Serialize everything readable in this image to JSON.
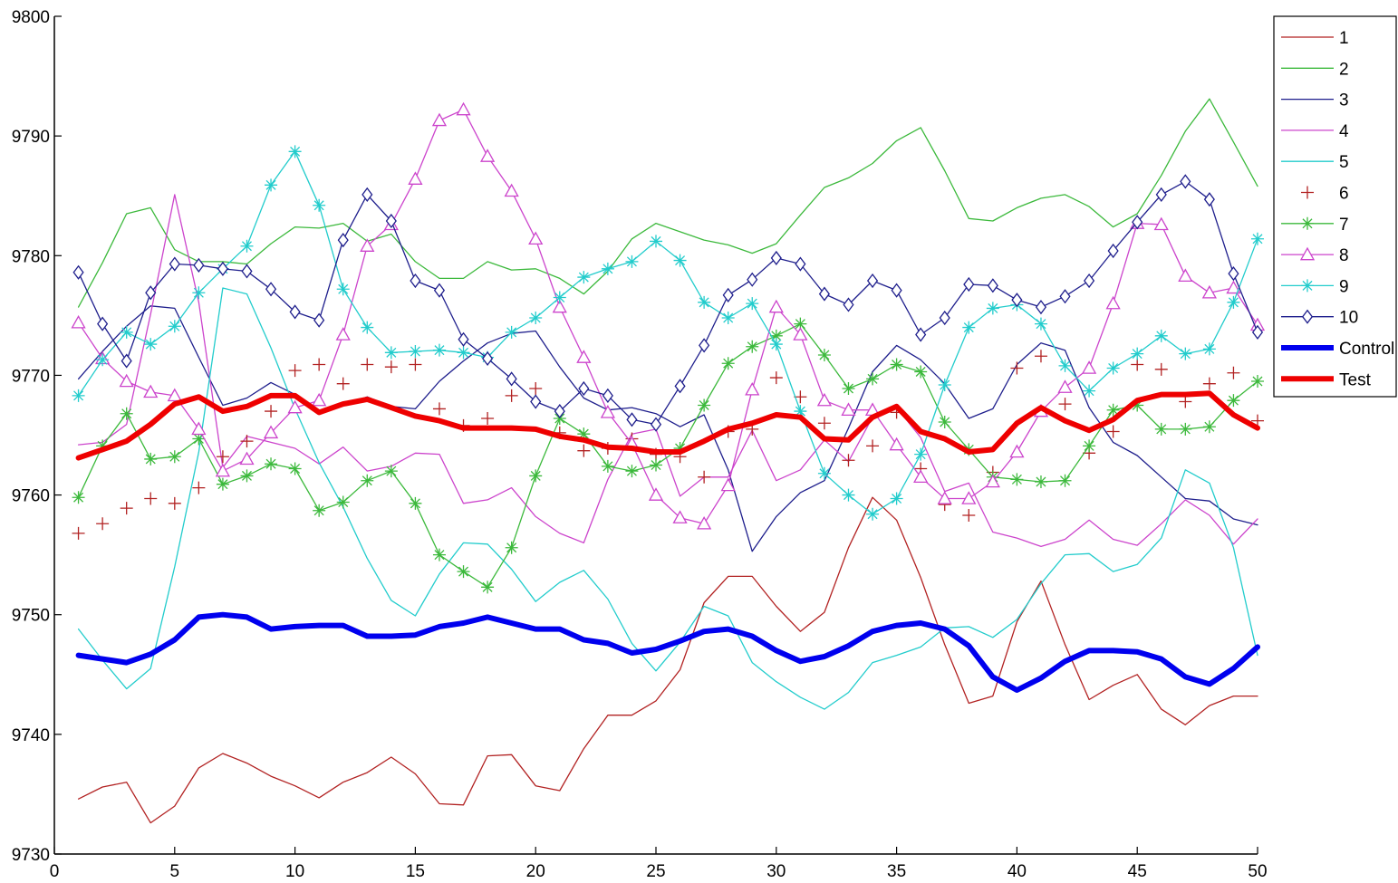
{
  "chart_data": {
    "type": "line",
    "title": "",
    "xlabel": "",
    "ylabel": "",
    "xlim": [
      0,
      50
    ],
    "ylim": [
      9730,
      9800
    ],
    "xticks": [
      0,
      5,
      10,
      15,
      20,
      25,
      30,
      35,
      40,
      45,
      50
    ],
    "yticks": [
      9730,
      9740,
      9750,
      9760,
      9770,
      9780,
      9790,
      9800
    ],
    "grid": false,
    "legend_position": "top-right outside",
    "x": [
      1,
      2,
      3,
      4,
      5,
      6,
      7,
      8,
      9,
      10,
      11,
      12,
      13,
      14,
      15,
      16,
      17,
      18,
      19,
      20,
      21,
      22,
      23,
      24,
      25,
      26,
      27,
      28,
      29,
      30,
      31,
      32,
      33,
      34,
      35,
      36,
      37,
      38,
      39,
      40,
      41,
      42,
      43,
      44,
      45,
      46,
      47,
      48,
      49,
      50
    ],
    "series": [
      {
        "name": "1",
        "color": "#b22222",
        "marker": "none",
        "width": 1.3,
        "values": [
          9734.6,
          9735.6,
          9736.0,
          9732.6,
          9734.0,
          9737.2,
          9738.4,
          9737.6,
          9736.5,
          9735.7,
          9734.7,
          9736.0,
          9736.8,
          9738.1,
          9736.7,
          9734.2,
          9734.1,
          9738.2,
          9738.3,
          9735.7,
          9735.3,
          9738.8,
          9741.6,
          9741.6,
          9742.8,
          9745.4,
          9751.0,
          9753.2,
          9753.2,
          9750.7,
          9748.6,
          9750.2,
          9755.6,
          9759.8,
          9757.9,
          9753.1,
          9747.5,
          9742.6,
          9743.2,
          9749.4,
          9752.8,
          9747.5,
          9742.9,
          9744.1,
          9745.0,
          9742.1,
          9740.8,
          9742.4,
          9743.2,
          9743.2
        ]
      },
      {
        "name": "2",
        "color": "#3cb93c",
        "marker": "none",
        "width": 1.3,
        "values": [
          9775.7,
          9779.4,
          9783.5,
          9784.0,
          9780.5,
          9779.5,
          9779.5,
          9779.3,
          9781.0,
          9782.4,
          9782.3,
          9782.7,
          9781.2,
          9781.8,
          9779.5,
          9778.1,
          9778.1,
          9779.5,
          9778.8,
          9778.9,
          9778.1,
          9776.8,
          9778.7,
          9781.4,
          9782.7,
          9782.0,
          9781.3,
          9780.9,
          9780.2,
          9781.0,
          9783.4,
          9785.7,
          9786.5,
          9787.7,
          9789.6,
          9790.7,
          9787.1,
          9783.1,
          9782.9,
          9784.0,
          9784.8,
          9785.1,
          9784.1,
          9782.4,
          9783.5,
          9786.7,
          9790.4,
          9793.1,
          9789.5,
          9785.8
        ]
      },
      {
        "name": "3",
        "color": "#1e1e8c",
        "marker": "none",
        "width": 1.3,
        "values": [
          9769.7,
          9772.0,
          9774.1,
          9775.8,
          9775.6,
          9771.5,
          9767.5,
          9768.1,
          9769.4,
          9768.4,
          9767.0,
          9767.5,
          9768.2,
          9767.4,
          9767.2,
          9769.5,
          9771.2,
          9772.7,
          9773.5,
          9773.7,
          9770.7,
          9768.1,
          9767.1,
          9767.3,
          9766.8,
          9765.7,
          9766.7,
          9762.1,
          9755.3,
          9758.2,
          9760.2,
          9761.2,
          9765.6,
          9770.3,
          9772.5,
          9771.3,
          9769.3,
          9766.4,
          9767.2,
          9770.9,
          9772.7,
          9772.1,
          9767.3,
          9764.4,
          9763.3,
          9761.5,
          9759.7,
          9759.5,
          9758.0,
          9757.5
        ]
      },
      {
        "name": "4",
        "color": "#cc44cc",
        "marker": "none",
        "width": 1.3,
        "values": [
          9764.2,
          9764.4,
          9765.9,
          9775.1,
          9785.1,
          9776.1,
          9762.3,
          9764.9,
          9764.4,
          9763.9,
          9762.6,
          9764.0,
          9762.0,
          9762.4,
          9763.5,
          9763.4,
          9759.3,
          9759.6,
          9760.6,
          9758.2,
          9756.8,
          9756.0,
          9761.3,
          9765.1,
          9765.5,
          9759.9,
          9761.5,
          9761.5,
          9765.4,
          9761.2,
          9762.1,
          9764.6,
          9762.8,
          9766.5,
          9767.3,
          9764.8,
          9760.3,
          9761.0,
          9756.9,
          9756.4,
          9755.7,
          9756.3,
          9757.9,
          9756.3,
          9755.8,
          9757.6,
          9759.6,
          9758.3,
          9755.9,
          9758.0
        ]
      },
      {
        "name": "5",
        "color": "#22cccc",
        "marker": "none",
        "width": 1.3,
        "values": [
          9748.8,
          9746.2,
          9743.8,
          9745.5,
          9754.0,
          9763.6,
          9777.3,
          9776.8,
          9772.3,
          9767.2,
          9762.7,
          9759.0,
          9754.7,
          9751.2,
          9749.9,
          9753.4,
          9756.0,
          9755.9,
          9753.8,
          9751.1,
          9752.7,
          9753.7,
          9751.3,
          9747.6,
          9745.3,
          9747.7,
          9750.7,
          9749.9,
          9746.0,
          9744.4,
          9743.1,
          9742.1,
          9743.5,
          9746.0,
          9746.6,
          9747.3,
          9748.9,
          9749.0,
          9748.1,
          9749.6,
          9752.6,
          9755.0,
          9755.1,
          9753.6,
          9754.2,
          9756.4,
          9762.1,
          9761.0,
          9755.6,
          9746.6
        ]
      },
      {
        "name": "6",
        "color": "#b22222",
        "marker": "plus",
        "line": false,
        "width": 1.3,
        "values": [
          9756.8,
          9757.6,
          9758.9,
          9759.7,
          9759.3,
          9760.6,
          9763.2,
          9764.5,
          9767.0,
          9770.4,
          9770.9,
          9769.3,
          9770.9,
          9770.7,
          9770.9,
          9767.2,
          9765.8,
          9766.4,
          9768.3,
          9768.9,
          9765.2,
          9763.7,
          9763.9,
          9764.7,
          9763.4,
          9763.2,
          9761.5,
          9765.3,
          9765.5,
          9769.8,
          9768.2,
          9766.0,
          9762.9,
          9764.1,
          9766.9,
          9762.2,
          9759.2,
          9758.3,
          9761.9,
          9770.6,
          9771.6,
          9767.6,
          9763.5,
          9765.3,
          9770.9,
          9770.5,
          9767.8,
          9769.3,
          9770.2,
          9766.2
        ]
      },
      {
        "name": "7",
        "color": "#3cb93c",
        "marker": "star",
        "width": 1.3,
        "values": [
          9759.8,
          9764.1,
          9766.8,
          9763.0,
          9763.2,
          9764.7,
          9760.9,
          9761.6,
          9762.6,
          9762.2,
          9758.7,
          9759.4,
          9761.2,
          9762.0,
          9759.3,
          9755.0,
          9753.6,
          9752.3,
          9755.6,
          9761.6,
          9766.4,
          9765.1,
          9762.4,
          9762.0,
          9762.5,
          9763.9,
          9767.5,
          9771.0,
          9772.4,
          9773.3,
          9774.3,
          9771.7,
          9768.9,
          9769.7,
          9770.9,
          9770.3,
          9766.1,
          9763.8,
          9761.5,
          9761.3,
          9761.1,
          9761.2,
          9764.1,
          9767.1,
          9767.5,
          9765.5,
          9765.5,
          9765.7,
          9767.9,
          9769.5
        ]
      },
      {
        "name": "8",
        "color": "#cc44cc",
        "marker": "triangle",
        "width": 1.3,
        "values": [
          9774.4,
          9771.4,
          9769.5,
          9768.6,
          9768.3,
          9765.5,
          9762.0,
          9763.0,
          9765.2,
          9767.3,
          9767.9,
          9773.4,
          9780.8,
          9782.6,
          9786.4,
          9791.3,
          9792.2,
          9788.3,
          9785.4,
          9781.4,
          9775.7,
          9771.5,
          9766.9,
          9764.3,
          9760.0,
          9758.1,
          9757.6,
          9760.8,
          9768.8,
          9775.7,
          9773.4,
          9767.9,
          9767.1,
          9767.1,
          9764.2,
          9761.5,
          9759.7,
          9759.7,
          9761.1,
          9763.6,
          9767.0,
          9769.0,
          9770.6,
          9776.0,
          9782.7,
          9782.6,
          9778.3,
          9776.9,
          9777.3,
          9774.2
        ]
      },
      {
        "name": "9",
        "color": "#22cccc",
        "marker": "star",
        "width": 1.3,
        "values": [
          9768.3,
          9771.3,
          9773.6,
          9772.6,
          9774.1,
          9776.9,
          9778.9,
          9780.8,
          9785.9,
          9788.7,
          9784.2,
          9777.2,
          9774.0,
          9771.9,
          9772.0,
          9772.1,
          9771.9,
          9771.5,
          9773.6,
          9774.8,
          9776.5,
          9778.2,
          9778.9,
          9779.5,
          9781.2,
          9779.6,
          9776.1,
          9774.8,
          9776.0,
          9772.6,
          9767.0,
          9761.8,
          9760.0,
          9758.4,
          9759.7,
          9763.4,
          9769.2,
          9774.0,
          9775.6,
          9775.9,
          9774.3,
          9770.8,
          9768.7,
          9770.6,
          9771.8,
          9773.3,
          9771.8,
          9772.2,
          9776.1,
          9781.4
        ]
      },
      {
        "name": "10",
        "color": "#1e1e8c",
        "marker": "diamond",
        "width": 1.3,
        "values": [
          9778.6,
          9774.3,
          9771.2,
          9776.9,
          9779.3,
          9779.2,
          9778.9,
          9778.7,
          9777.2,
          9775.3,
          9774.6,
          9781.3,
          9785.1,
          9782.9,
          9777.9,
          9777.1,
          9773.0,
          9771.4,
          9769.7,
          9767.8,
          9767.0,
          9768.9,
          9768.3,
          9766.3,
          9765.9,
          9769.1,
          9772.5,
          9776.7,
          9778.0,
          9779.8,
          9779.3,
          9776.8,
          9775.9,
          9777.9,
          9777.1,
          9773.4,
          9774.8,
          9777.6,
          9777.5,
          9776.3,
          9775.7,
          9776.6,
          9777.9,
          9780.4,
          9782.8,
          9785.1,
          9786.2,
          9784.7,
          9778.5,
          9773.6
        ]
      },
      {
        "name": "Control",
        "color": "#0000ee",
        "marker": "none",
        "width": 6,
        "values": [
          9746.6,
          9746.3,
          9746.0,
          9746.7,
          9747.9,
          9749.8,
          9750.0,
          9749.8,
          9748.8,
          9749.0,
          9749.1,
          9749.1,
          9748.2,
          9748.2,
          9748.3,
          9749.0,
          9749.3,
          9749.8,
          9749.3,
          9748.8,
          9748.8,
          9747.9,
          9747.6,
          9746.8,
          9747.1,
          9747.8,
          9748.6,
          9748.8,
          9748.2,
          9747.0,
          9746.1,
          9746.5,
          9747.4,
          9748.6,
          9749.1,
          9749.3,
          9748.8,
          9747.4,
          9744.8,
          9743.7,
          9744.7,
          9746.1,
          9747.0,
          9747.0,
          9746.9,
          9746.3,
          9744.8,
          9744.2,
          9745.5,
          9747.3
        ]
      },
      {
        "name": "Test",
        "color": "#ee0000",
        "marker": "none",
        "width": 6,
        "values": [
          9763.1,
          9763.8,
          9764.5,
          9765.9,
          9767.6,
          9768.2,
          9767.0,
          9767.4,
          9768.3,
          9768.3,
          9766.9,
          9767.6,
          9768.0,
          9767.3,
          9766.6,
          9766.2,
          9765.6,
          9765.6,
          9765.6,
          9765.5,
          9764.9,
          9764.6,
          9764.0,
          9763.9,
          9763.6,
          9763.6,
          9764.5,
          9765.5,
          9766.0,
          9766.7,
          9766.5,
          9764.7,
          9764.6,
          9766.5,
          9767.4,
          9765.3,
          9764.7,
          9763.6,
          9763.8,
          9766.0,
          9767.3,
          9766.2,
          9765.4,
          9766.3,
          9767.9,
          9768.4,
          9768.4,
          9768.5,
          9766.7,
          9765.6
        ]
      }
    ]
  }
}
